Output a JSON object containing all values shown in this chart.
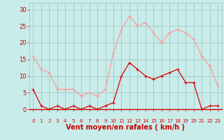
{
  "hours": [
    0,
    1,
    2,
    3,
    4,
    5,
    6,
    7,
    8,
    9,
    10,
    11,
    12,
    13,
    14,
    15,
    16,
    17,
    18,
    19,
    20,
    21,
    22,
    23
  ],
  "wind_avg": [
    6,
    1,
    0,
    1,
    0,
    1,
    0,
    1,
    0,
    1,
    2,
    10,
    14,
    12,
    10,
    9,
    10,
    11,
    12,
    8,
    8,
    0,
    1,
    1
  ],
  "wind_gust": [
    16,
    12,
    11,
    6,
    6,
    6,
    4,
    5,
    4,
    6,
    17,
    24,
    28,
    25,
    26,
    23,
    20,
    23,
    24,
    23,
    21,
    16,
    13,
    7
  ],
  "color_avg": "#dd0000",
  "color_gust": "#ff9999",
  "bg_color": "#c8ecea",
  "grid_color": "#aacccc",
  "xlabel": "Vent moyen/en rafales ( km/h )",
  "xlabel_color": "#cc0000",
  "tick_color": "#cc0000",
  "ylim": [
    0,
    32
  ],
  "yticks": [
    0,
    5,
    10,
    15,
    20,
    25,
    30
  ],
  "ytick_labels": [
    "0",
    "5",
    "10",
    "15",
    "20",
    "25",
    "30"
  ],
  "marker": "+",
  "marker_size": 3,
  "linewidth": 0.9
}
